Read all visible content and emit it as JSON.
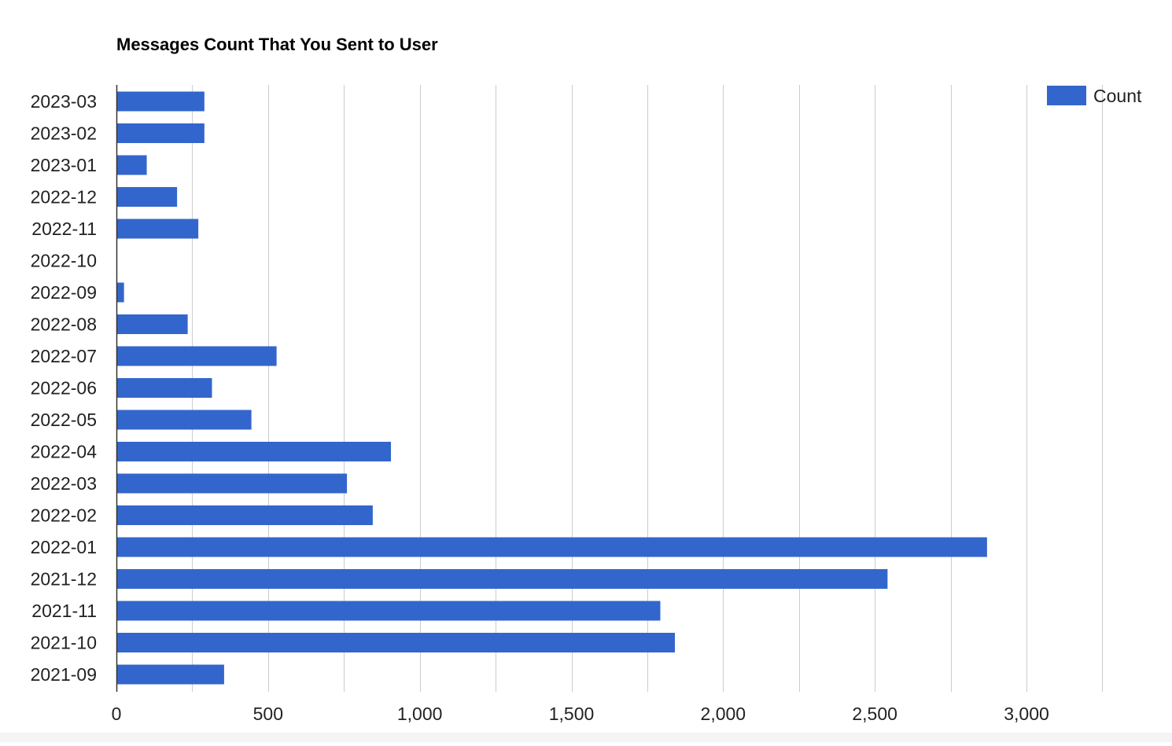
{
  "chart_data": {
    "type": "bar",
    "orientation": "horizontal",
    "title": "Messages Count That You Sent to User",
    "xlabel": "",
    "ylabel": "",
    "xlim": [
      0,
      3300
    ],
    "xticks": [
      0,
      500,
      1000,
      1500,
      2000,
      2500,
      3000
    ],
    "xtick_labels": [
      "0",
      "500",
      "1,000",
      "1,500",
      "2,000",
      "2,500",
      "3,000"
    ],
    "grid": true,
    "legend_position": "top-right",
    "categories": [
      "2023-03",
      "2023-02",
      "2023-01",
      "2022-12",
      "2022-11",
      "2022-10",
      "2022-09",
      "2022-08",
      "2022-07",
      "2022-06",
      "2022-05",
      "2022-04",
      "2022-03",
      "2022-02",
      "2022-01",
      "2021-12",
      "2021-11",
      "2021-10",
      "2021-09"
    ],
    "series": [
      {
        "name": "Count",
        "color": "#3366cc",
        "values": [
          290,
          290,
          100,
          200,
          270,
          0,
          25,
          235,
          528,
          315,
          445,
          905,
          760,
          845,
          2870,
          2542,
          1793,
          1841,
          355
        ]
      }
    ]
  }
}
